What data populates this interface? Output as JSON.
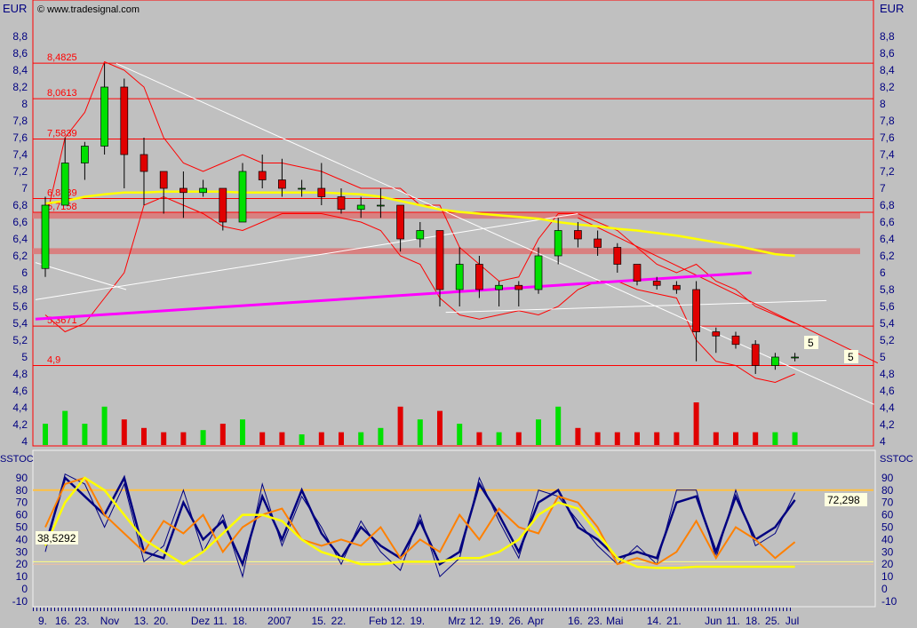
{
  "header": {
    "currency_left": "EUR",
    "currency_right": "EUR",
    "copyright": "© www.tradesignal.com"
  },
  "stoch_panel": {
    "label_left": "SSTOC",
    "label_right": "SSTOC",
    "value_left": "38,5292",
    "value_right": "72,298"
  },
  "price_badges": {
    "left": "5",
    "right": "5"
  },
  "colors": {
    "background": "#c0c0c0",
    "axis_text": "#000080",
    "level_lines": "#ff0000",
    "up_candle": "#00e000",
    "down_candle": "#e00000",
    "ma": "#ffff00",
    "trend_magenta": "#ff00ff",
    "trend_white": "#ffffff",
    "band": "#d88080"
  },
  "chart_data": [
    {
      "type": "candlestick",
      "ylim": [
        3.9,
        9.0
      ],
      "yticks": [
        "4",
        "4,2",
        "4,4",
        "4,6",
        "4,8",
        "5",
        "5,2",
        "5,4",
        "5,6",
        "5,8",
        "6",
        "6,2",
        "6,4",
        "6,6",
        "6,8",
        "7",
        "7,2",
        "7,4",
        "7,6",
        "7,8",
        "8",
        "8,2",
        "8,4",
        "8,6",
        "8,8"
      ],
      "xticks": [
        "9.",
        "16.",
        "23.",
        "Nov",
        "13.",
        "20.",
        "Dez",
        "11.",
        "18.",
        "2007",
        "15.",
        "22.",
        "Feb",
        "12.",
        "19.",
        "Mrz",
        "12.",
        "19.",
        "26.",
        "Apr",
        "16.",
        "23.",
        "Mai",
        "14.",
        "21.",
        "Jun",
        "11.",
        "18.",
        "25.",
        "Jul"
      ],
      "xtick_weeks": [
        0,
        1,
        2,
        3.4,
        5,
        6,
        8,
        9,
        10,
        12,
        14,
        15,
        17,
        18,
        19,
        21,
        22,
        23,
        24,
        25,
        27,
        28,
        29,
        31,
        32,
        34,
        35,
        36,
        37,
        38
      ],
      "levels": [
        {
          "value": 8.4825,
          "label": "8,4825"
        },
        {
          "value": 8.0613,
          "label": "8,0613"
        },
        {
          "value": 7.5839,
          "label": "7,5839"
        },
        {
          "value": 6.8789,
          "label": "6,8789"
        },
        {
          "value": 6.7158,
          "label": "6,7158"
        },
        {
          "value": 5.3671,
          "label": "5,3671"
        },
        {
          "value": 4.9,
          "label": "4,9"
        }
      ],
      "bands": [
        [
          6.64,
          6.71
        ],
        [
          6.22,
          6.29
        ]
      ],
      "ohlc": [
        [
          6.05,
          6.9,
          5.95,
          6.8
        ],
        [
          6.8,
          7.6,
          6.8,
          7.3
        ],
        [
          7.3,
          7.55,
          7.1,
          7.5
        ],
        [
          7.5,
          8.48,
          7.4,
          8.2
        ],
        [
          8.2,
          8.3,
          7.0,
          7.4
        ],
        [
          7.4,
          7.6,
          6.8,
          7.2
        ],
        [
          7.2,
          7.2,
          6.7,
          7.0
        ],
        [
          7.0,
          7.2,
          6.65,
          6.95
        ],
        [
          6.95,
          7.1,
          6.9,
          7.0
        ],
        [
          7.0,
          7.0,
          6.5,
          6.6
        ],
        [
          6.6,
          7.3,
          6.6,
          7.2
        ],
        [
          7.2,
          7.4,
          7.0,
          7.1
        ],
        [
          7.1,
          7.35,
          6.9,
          7.0
        ],
        [
          7.0,
          7.1,
          6.9,
          7.0
        ],
        [
          7.0,
          7.3,
          6.8,
          6.9
        ],
        [
          6.9,
          7.0,
          6.7,
          6.75
        ],
        [
          6.75,
          6.9,
          6.65,
          6.8
        ],
        [
          6.8,
          7.0,
          6.65,
          6.8
        ],
        [
          6.8,
          6.8,
          6.25,
          6.4
        ],
        [
          6.4,
          6.6,
          6.3,
          6.5
        ],
        [
          6.5,
          6.5,
          5.6,
          5.8
        ],
        [
          5.8,
          6.3,
          5.6,
          6.1
        ],
        [
          6.1,
          6.2,
          5.7,
          5.8
        ],
        [
          5.8,
          5.9,
          5.6,
          5.85
        ],
        [
          5.85,
          5.9,
          5.6,
          5.8
        ],
        [
          5.8,
          6.3,
          5.75,
          6.2
        ],
        [
          6.2,
          6.65,
          6.1,
          6.5
        ],
        [
          6.5,
          6.6,
          6.3,
          6.4
        ],
        [
          6.4,
          6.5,
          6.2,
          6.3
        ],
        [
          6.3,
          6.35,
          6.0,
          6.1
        ],
        [
          6.1,
          6.1,
          5.85,
          5.9
        ],
        [
          5.9,
          5.95,
          5.8,
          5.85
        ],
        [
          5.85,
          5.9,
          5.75,
          5.8
        ],
        [
          5.8,
          5.9,
          4.95,
          5.3
        ],
        [
          5.3,
          5.35,
          5.05,
          5.25
        ],
        [
          5.25,
          5.3,
          5.1,
          5.15
        ],
        [
          5.15,
          5.2,
          4.8,
          4.9
        ],
        [
          4.9,
          5.05,
          4.85,
          5.0
        ],
        [
          5.0,
          5.05,
          4.95,
          5.0
        ]
      ],
      "volume_relative": [
        0.5,
        0.8,
        0.5,
        0.9,
        0.6,
        0.4,
        0.3,
        0.3,
        0.35,
        0.5,
        0.6,
        0.3,
        0.3,
        0.25,
        0.3,
        0.3,
        0.3,
        0.4,
        0.9,
        0.6,
        0.8,
        0.5,
        0.3,
        0.3,
        0.3,
        0.6,
        0.9,
        0.4,
        0.3,
        0.3,
        0.3,
        0.3,
        0.3,
        1.0,
        0.3,
        0.3,
        0.3,
        0.3,
        0.3
      ],
      "moving_average": [
        6.82,
        6.85,
        6.9,
        6.93,
        6.95,
        6.95,
        6.96,
        6.96,
        6.96,
        6.96,
        6.95,
        6.95,
        6.95,
        6.95,
        6.95,
        6.94,
        6.93,
        6.9,
        6.85,
        6.8,
        6.75,
        6.72,
        6.7,
        6.68,
        6.66,
        6.64,
        6.6,
        6.57,
        6.55,
        6.52,
        6.5,
        6.47,
        6.44,
        6.4,
        6.36,
        6.32,
        6.27,
        6.22,
        6.2
      ],
      "bollinger_upper": [
        6.6,
        7.6,
        7.9,
        8.5,
        8.4,
        8.2,
        7.6,
        7.3,
        7.2,
        7.3,
        7.4,
        7.3,
        7.3,
        7.25,
        7.2,
        7.1,
        7.0,
        7.0,
        7.0,
        6.8,
        6.8,
        6.3,
        6.1,
        5.9,
        5.95,
        6.4,
        6.7,
        6.7,
        6.6,
        6.5,
        6.3,
        6.1,
        6.0,
        6.1,
        5.9,
        5.8,
        5.6,
        5.5,
        5.4
      ],
      "bollinger_lower": [
        5.5,
        5.3,
        5.4,
        5.7,
        6.0,
        6.8,
        6.9,
        6.8,
        6.7,
        6.55,
        6.5,
        6.6,
        6.7,
        6.7,
        6.7,
        6.65,
        6.6,
        6.5,
        6.2,
        6.1,
        5.7,
        5.5,
        5.45,
        5.5,
        5.55,
        5.5,
        5.6,
        5.8,
        5.9,
        5.9,
        5.8,
        5.75,
        5.7,
        5.2,
        4.95,
        4.9,
        4.75,
        4.7,
        4.8
      ],
      "trendlines": [
        {
          "color": "#ffffff",
          "from": [
            3.6,
            8.48
          ],
          "to": [
            42,
            4.44
          ]
        },
        {
          "color": "#ffffff",
          "from": [
            -0.5,
            5.68
          ],
          "to": [
            27,
            6.7
          ]
        },
        {
          "color": "#ffffff",
          "from": [
            -0.5,
            6.12
          ],
          "to": [
            4.1,
            5.8
          ]
        },
        {
          "color": "#ffffff",
          "from": [
            20.3,
            5.53
          ],
          "to": [
            39.6,
            5.67
          ]
        },
        {
          "color": "#ff0000",
          "from": [
            27,
            6.65
          ],
          "to": [
            42.2,
            4.93
          ]
        },
        {
          "color": "#ff00ff",
          "from": [
            -0.5,
            5.45
          ],
          "to": [
            35.8,
            6.0
          ]
        }
      ]
    },
    {
      "type": "line",
      "title": "SSTOC",
      "ylim": [
        -20,
        100
      ],
      "yticks": [
        "-10",
        "0",
        "10",
        "20",
        "30",
        "40",
        "50",
        "60",
        "70",
        "80",
        "90"
      ],
      "hlines": [
        80,
        22,
        20
      ],
      "series": [
        {
          "color": "#000080",
          "width": 2.5,
          "values": [
            35,
            90,
            75,
            60,
            90,
            30,
            25,
            70,
            40,
            55,
            20,
            75,
            40,
            80,
            45,
            25,
            50,
            35,
            25,
            55,
            20,
            30,
            85,
            60,
            30,
            70,
            80,
            50,
            40,
            25,
            30,
            25,
            70,
            75,
            30,
            75,
            40,
            50,
            72
          ]
        },
        {
          "color": "#000080",
          "width": 1,
          "values": [
            30,
            93,
            85,
            50,
            85,
            22,
            35,
            80,
            30,
            60,
            10,
            85,
            35,
            75,
            50,
            20,
            55,
            30,
            15,
            60,
            10,
            25,
            90,
            55,
            25,
            80,
            75,
            55,
            35,
            20,
            35,
            20,
            80,
            80,
            25,
            80,
            35,
            45,
            78
          ]
        },
        {
          "color": "#ff8000",
          "width": 2,
          "values": [
            50,
            85,
            90,
            60,
            45,
            30,
            55,
            45,
            60,
            30,
            50,
            60,
            65,
            40,
            35,
            40,
            35,
            50,
            25,
            40,
            30,
            60,
            40,
            65,
            50,
            45,
            75,
            70,
            50,
            20,
            25,
            20,
            30,
            55,
            25,
            50,
            40,
            25,
            38
          ]
        },
        {
          "color": "#ffff00",
          "width": 2.5,
          "values": [
            35,
            70,
            90,
            80,
            60,
            40,
            30,
            20,
            30,
            45,
            60,
            60,
            55,
            40,
            30,
            25,
            20,
            20,
            22,
            22,
            22,
            25,
            25,
            30,
            40,
            60,
            70,
            65,
            45,
            25,
            18,
            17,
            17,
            18,
            18,
            18,
            18,
            18,
            18
          ]
        }
      ]
    }
  ]
}
